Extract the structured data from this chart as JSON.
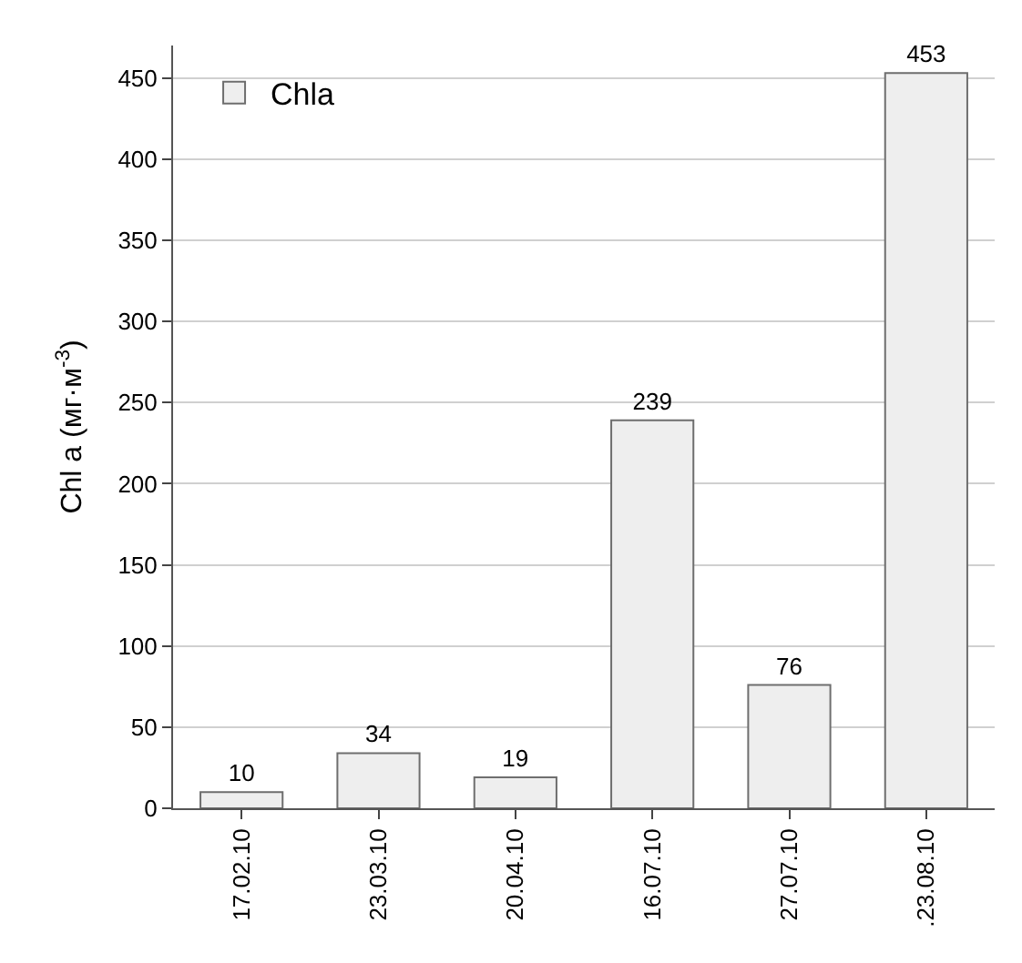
{
  "chart_data": {
    "type": "bar",
    "ylabel": "Chl a (мг·м$^{-3}$)",
    "categories": [
      "17.02.10",
      "23.03.10",
      "20.04.10",
      "16.07.10",
      "27.07.10",
      ".23.08.10"
    ],
    "series": [
      {
        "name": "Chla",
        "color": "#eeeeee",
        "values": [
          10,
          34,
          19,
          239,
          76,
          453
        ]
      }
    ],
    "ylim": [
      0,
      470
    ],
    "yticks": [
      0,
      50,
      100,
      150,
      200,
      250,
      300,
      350,
      400,
      450
    ],
    "grid": "y",
    "legend": "top left",
    "data_labels": true
  }
}
